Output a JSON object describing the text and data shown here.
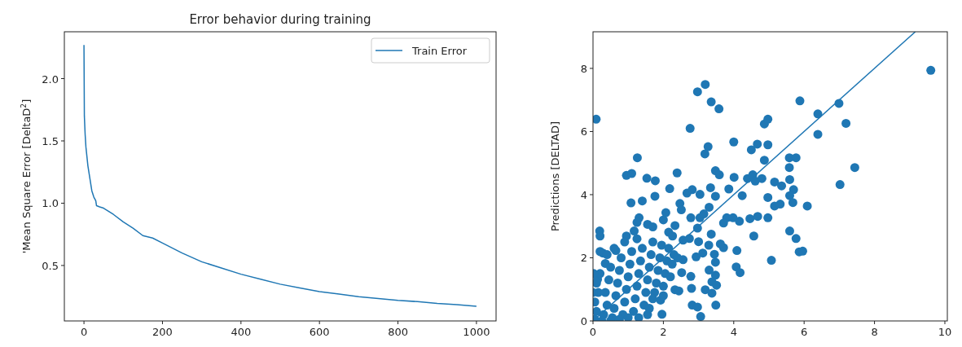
{
  "chart_data": [
    {
      "type": "line",
      "title": "Error behavior during training",
      "ylabel": "'Mean Square Error [DeltaD$^{2}$]",
      "xlim": [
        -50,
        1050
      ],
      "ylim": [
        0.055,
        2.376
      ],
      "xticks": [
        0,
        200,
        400,
        600,
        800,
        1000
      ],
      "yticks": [
        {
          "value": 0.5,
          "label": "0.5"
        },
        {
          "value": 1.0,
          "label": "1.0"
        },
        {
          "value": 1.5,
          "label": "1.5"
        },
        {
          "value": 2.0,
          "label": "2.0"
        }
      ],
      "legend": "top right",
      "series": [
        {
          "name": "Train Error",
          "color": "#1f77b4",
          "x": [
            0,
            1,
            3,
            5,
            10,
            15,
            20,
            25,
            30,
            32,
            40,
            50,
            75,
            100,
            125,
            150,
            175,
            200,
            250,
            300,
            350,
            400,
            450,
            500,
            550,
            600,
            650,
            700,
            750,
            800,
            850,
            900,
            950,
            1000
          ],
          "values": [
            2.27,
            1.7,
            1.55,
            1.45,
            1.3,
            1.2,
            1.1,
            1.05,
            1.02,
            0.98,
            0.97,
            0.96,
            0.91,
            0.85,
            0.8,
            0.74,
            0.72,
            0.68,
            0.6,
            0.53,
            0.48,
            0.43,
            0.39,
            0.35,
            0.32,
            0.29,
            0.27,
            0.25,
            0.235,
            0.22,
            0.21,
            0.195,
            0.185,
            0.173
          ]
        }
      ]
    },
    {
      "type": "scatter",
      "ylabel": "Predictions [DELTAD]",
      "xlim": [
        0,
        10.07
      ],
      "ylim": [
        0,
        9.16
      ],
      "xticks": [
        0,
        2,
        4,
        6,
        8,
        10
      ],
      "yticks": [
        0,
        2,
        4,
        6,
        8
      ],
      "series": [
        {
          "color": "#1f77b4",
          "marker": "circle",
          "x": [
            0.09,
            0.19,
            0.28,
            1.26,
            0.95,
            1.1,
            1.08,
            1.4,
            1.53,
            1.77,
            1.76,
            2.18,
            2.39,
            2.76,
            2.97,
            3.19,
            3.36,
            3.58,
            3.18,
            3.27,
            4.0,
            3.48,
            3.59,
            2.67,
            2.82,
            3.04,
            3.34,
            3.48,
            4.01,
            3.86,
            4.24,
            4.39,
            4.54,
            4.61,
            4.8,
            4.5,
            4.67,
            4.97,
            4.87,
            4.87,
            4.97,
            5.88,
            6.39,
            6.39,
            6.99,
            7.19,
            7.44,
            7.02,
            9.6,
            5.58,
            5.77,
            5.58,
            5.59,
            5.7,
            5.59,
            5.68,
            6.09,
            5.16,
            5.36,
            4.97,
            5.16,
            5.32,
            5.59,
            5.77,
            5.86,
            5.96,
            5.07,
            4.97,
            4.57,
            4.46,
            4.68,
            4.16,
            3.8,
            3.71,
            3.98,
            4.09,
            4.07,
            4.18,
            3.71,
            3.62,
            3.45,
            3.48,
            3.3,
            3.48,
            3.38,
            3.51,
            3.19,
            3.38,
            3.49,
            2.82,
            2.97,
            3.06,
            2.78,
            2.8,
            2.33,
            2.44,
            1.96,
            1.92,
            3.36,
            3.29,
            3.12,
            2.93,
            3.0,
            2.74,
            2.56,
            2.97,
            2.78,
            3.04,
            3.15,
            3.3,
            2.47,
            2.51,
            2.07,
            2.0,
            1.31,
            1.25,
            1.55,
            1.7,
            2.15,
            2.33,
            2.26,
            0.95,
            1.17,
            0.65,
            0.35,
            0.13,
            0.2,
            2.56,
            2.52,
            0.05,
            0.1,
            0.05,
            0.15,
            0.1,
            0.2,
            0.3,
            0.4,
            0.35,
            0.45,
            0.5,
            0.55,
            0.6,
            0.65,
            0.7,
            0.75,
            0.8,
            0.85,
            0.9,
            0.95,
            1.0,
            1.05,
            1.1,
            1.15,
            1.2,
            1.25,
            1.3,
            1.35,
            1.4,
            1.45,
            1.5,
            1.55,
            1.6,
            1.65,
            1.7,
            1.75,
            1.8,
            1.85,
            1.9,
            1.95,
            2.0,
            2.05,
            2.1,
            2.15,
            2.2,
            2.25,
            2.3,
            2.4,
            0.25,
            0.5,
            0.75,
            1.0,
            1.3,
            1.55,
            0.0,
            0.02,
            0.2,
            0.4,
            0.6,
            0.9,
            1.25,
            1.6,
            1.7,
            2.0
          ],
          "values": [
            6.39,
            2.85,
            2.15,
            5.17,
            4.61,
            4.67,
            3.74,
            3.8,
            4.52,
            4.44,
            3.95,
            4.19,
            4.69,
            6.1,
            7.26,
            7.49,
            6.94,
            6.72,
            5.29,
            5.52,
            5.67,
            4.76,
            4.63,
            4.05,
            4.16,
            4.01,
            4.22,
            3.95,
            4.55,
            4.18,
            3.97,
            4.51,
            4.63,
            4.43,
            4.51,
            5.42,
            5.6,
            5.58,
            5.09,
            6.24,
            6.39,
            6.97,
            6.56,
            5.91,
            6.89,
            6.26,
            4.86,
            4.32,
            7.94,
            5.17,
            5.17,
            4.86,
            4.48,
            4.16,
            3.97,
            3.75,
            3.64,
            4.4,
            4.28,
            3.91,
            3.64,
            3.7,
            2.85,
            2.61,
            2.19,
            2.21,
            1.92,
            3.27,
            2.69,
            3.24,
            3.31,
            3.16,
            3.27,
            3.1,
            3.27,
            2.23,
            1.71,
            1.53,
            2.32,
            2.44,
            2.11,
            1.86,
            1.61,
            1.45,
            1.24,
            1.13,
            0.99,
            0.88,
            0.5,
            0.5,
            0.44,
            0.14,
            1.41,
            1.03,
            0.99,
            0.95,
            0.21,
            0.66,
            2.75,
            2.4,
            2.15,
            2.03,
            2.51,
            2.61,
            2.56,
            2.94,
            3.27,
            3.27,
            3.39,
            3.6,
            3.72,
            3.52,
            3.43,
            3.2,
            3.27,
            3.12,
            3.06,
            2.98,
            2.81,
            3.02,
            2.69,
            2.69,
            2.85,
            2.23,
            1.82,
            1.32,
            2.69,
            1.94,
            1.53,
            0.05,
            0.3,
            0.6,
            0.9,
            1.2,
            1.5,
            0.2,
            0.5,
            0.9,
            1.3,
            1.7,
            0.1,
            0.4,
            0.8,
            1.2,
            1.6,
            2.0,
            0.2,
            0.6,
            1.0,
            1.4,
            1.8,
            2.2,
            0.3,
            0.7,
            1.1,
            1.5,
            1.9,
            2.3,
            0.5,
            0.9,
            1.3,
            1.7,
            2.1,
            2.5,
            0.9,
            1.2,
            1.6,
            2.0,
            2.4,
            1.1,
            1.5,
            1.9,
            2.3,
            1.4,
            1.8,
            2.1,
            2.0,
            0.0,
            0.0,
            0.05,
            0.1,
            0.1,
            0.2,
            0.9,
            1.5,
            2.2,
            2.1,
            2.3,
            2.5,
            2.6,
            0.4,
            0.7,
            0.8
          ]
        },
        {
          "type": "line",
          "color": "#1f77b4",
          "x": [
            0,
            9.16
          ],
          "values": [
            0,
            9.16
          ]
        }
      ]
    }
  ]
}
